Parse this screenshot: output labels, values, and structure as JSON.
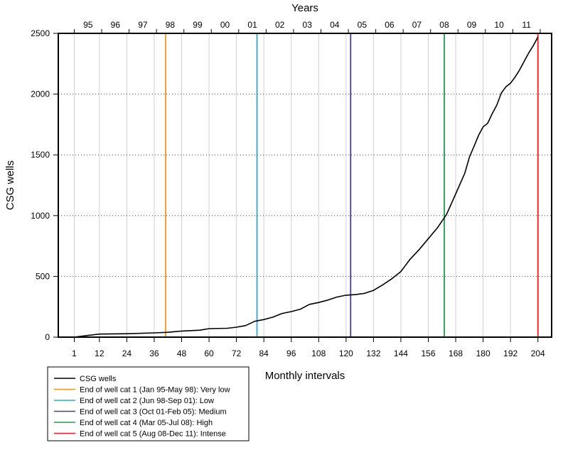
{
  "chart_data": {
    "type": "line",
    "xlabel": "Monthly intervals",
    "ylabel": "CSG wells",
    "top_axis_label": "Years",
    "xlim": [
      -6,
      210
    ],
    "ylim": [
      0,
      2500
    ],
    "x_ticks": [
      1,
      12,
      24,
      36,
      48,
      60,
      72,
      84,
      96,
      108,
      120,
      132,
      144,
      156,
      168,
      180,
      192,
      204
    ],
    "y_ticks": [
      0,
      500,
      1000,
      1500,
      2000,
      2500
    ],
    "top_ticks": [
      {
        "label": "95",
        "month": 7
      },
      {
        "label": "96",
        "month": 19
      },
      {
        "label": "97",
        "month": 31
      },
      {
        "label": "98",
        "month": 43
      },
      {
        "label": "99",
        "month": 55
      },
      {
        "label": "00",
        "month": 67
      },
      {
        "label": "01",
        "month": 79
      },
      {
        "label": "02",
        "month": 91
      },
      {
        "label": "03",
        "month": 103
      },
      {
        "label": "04",
        "month": 115
      },
      {
        "label": "05",
        "month": 127
      },
      {
        "label": "06",
        "month": 139
      },
      {
        "label": "07",
        "month": 151
      },
      {
        "label": "08",
        "month": 163
      },
      {
        "label": "09",
        "month": 175
      },
      {
        "label": "10",
        "month": 187
      },
      {
        "label": "11",
        "month": 199
      }
    ],
    "top_boundaries": [
      1,
      13,
      25,
      37,
      49,
      61,
      73,
      85,
      97,
      109,
      121,
      133,
      145,
      157,
      169,
      181,
      193,
      205
    ],
    "grid": true,
    "legend_position": "bottom-left",
    "series": [
      {
        "name": "CSG wells",
        "color": "#000000",
        "x": [
          1,
          6,
          12,
          24,
          36,
          42,
          48,
          56,
          60,
          68,
          72,
          76,
          80,
          84,
          88,
          92,
          96,
          100,
          104,
          108,
          112,
          116,
          120,
          124,
          128,
          132,
          136,
          140,
          144,
          148,
          152,
          156,
          160,
          164,
          168,
          172,
          174,
          176,
          178,
          180,
          182,
          184,
          186,
          188,
          190,
          192,
          194,
          196,
          198,
          200,
          202,
          204
        ],
        "y": [
          0,
          12,
          25,
          28,
          35,
          40,
          50,
          57,
          70,
          73,
          82,
          95,
          130,
          145,
          165,
          195,
          210,
          230,
          270,
          285,
          305,
          330,
          345,
          350,
          360,
          385,
          430,
          480,
          540,
          640,
          720,
          810,
          900,
          1010,
          1180,
          1350,
          1480,
          1570,
          1660,
          1730,
          1760,
          1840,
          1910,
          2010,
          2060,
          2090,
          2140,
          2200,
          2270,
          2340,
          2400,
          2470
        ]
      }
    ],
    "vertical_lines": [
      {
        "name": "End of well cat 1 (Jan 95-May 98): Very low",
        "x": 41,
        "color": "#f7941d"
      },
      {
        "name": "End of well cat 2 (Jun 98-Sep 01): Low",
        "x": 81,
        "color": "#29abe2"
      },
      {
        "name": "End of well cat 3 (Oct 01-Feb 05): Medium",
        "x": 122,
        "color": "#4b3b8f"
      },
      {
        "name": "End of well cat 4 (Mar 05-Jul 08): High",
        "x": 163,
        "color": "#1e9e4a"
      },
      {
        "name": "End of well cat 5 (Aug 08-Dec 11): Intense",
        "x": 204,
        "color": "#ed1c24"
      }
    ]
  }
}
